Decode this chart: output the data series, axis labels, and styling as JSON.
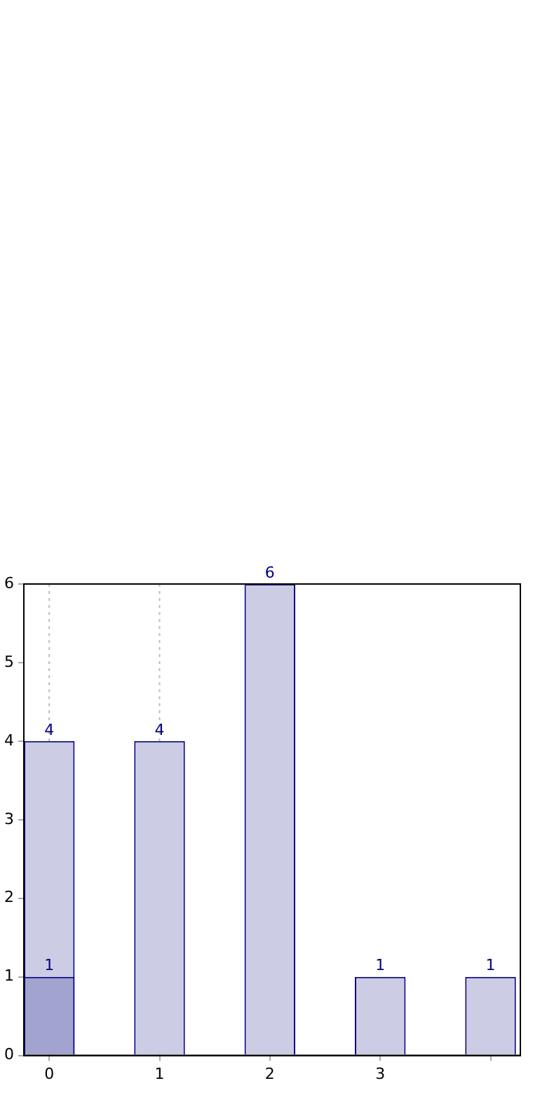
{
  "chart_data": {
    "type": "bar",
    "x": [
      0,
      1,
      2,
      3,
      4
    ],
    "series": [
      {
        "color": "#ccccE4",
        "values": [
          4,
          4,
          6,
          1,
          1
        ]
      },
      {
        "color": "#a3a3d0",
        "values": [
          1,
          null,
          null,
          null,
          null
        ]
      }
    ],
    "xlim": [
      -0.23,
      4.27
    ],
    "xticks": [
      0,
      1,
      2,
      3,
      {
        "value": 4,
        "label": null
      }
    ],
    "ylim": [
      0,
      6
    ],
    "yticks": [
      0,
      1,
      2,
      3,
      4,
      5,
      6
    ],
    "grid": false,
    "legend": false,
    "data_labels": true,
    "ref_lines": [
      {
        "axis": "x",
        "value": 0,
        "color": "#bbbbbb",
        "line_style": "dotted"
      },
      {
        "axis": "x",
        "value": 1,
        "color": "#bbbbbb",
        "line_style": "dotted"
      }
    ]
  }
}
